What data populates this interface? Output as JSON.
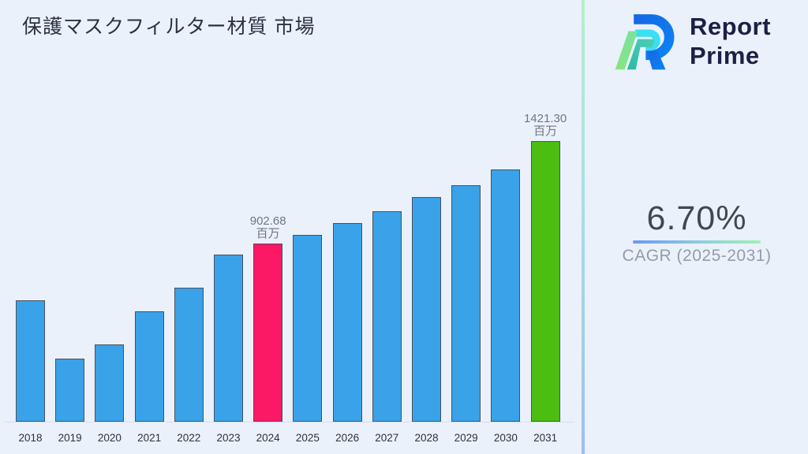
{
  "page": {
    "background": "#EAF1FB"
  },
  "header": {
    "title": "保護マスクフィルター材質 市場"
  },
  "logo": {
    "line1": "Report",
    "line2": "Prime"
  },
  "cagr": {
    "value": "6.70%",
    "label": "CAGR (2025-2031)",
    "underline_gradient": [
      "#6C98F2",
      "#A2EFB4"
    ]
  },
  "chart_data": {
    "type": "bar",
    "title": "保護マスクフィルター材質 市場",
    "unit": "百万",
    "categories": [
      "2018",
      "2019",
      "2020",
      "2021",
      "2022",
      "2023",
      "2024",
      "2025",
      "2026",
      "2027",
      "2028",
      "2029",
      "2030",
      "2031"
    ],
    "values": [
      615,
      320,
      391,
      559,
      679,
      847,
      902.68,
      947,
      1007,
      1066,
      1138,
      1198,
      1278,
      1421.3
    ],
    "labeled_points": [
      {
        "index": 6,
        "category": "2024",
        "value_text": "902.68",
        "unit_text": "百万"
      },
      {
        "index": 13,
        "category": "2031",
        "value_text": "1421.30",
        "unit_text": "百万"
      }
    ],
    "bar_colors": {
      "default": "#39A2E9",
      "2024": "#FB1864",
      "2031": "#4CBE12"
    },
    "bar_border_color": "#46525E",
    "xlabel": "",
    "ylabel": "",
    "ylim": [
      0,
      1500
    ],
    "grid": false,
    "legend": false,
    "label_color": "#6F767E",
    "axis_line_color": "#D7DEE9"
  }
}
